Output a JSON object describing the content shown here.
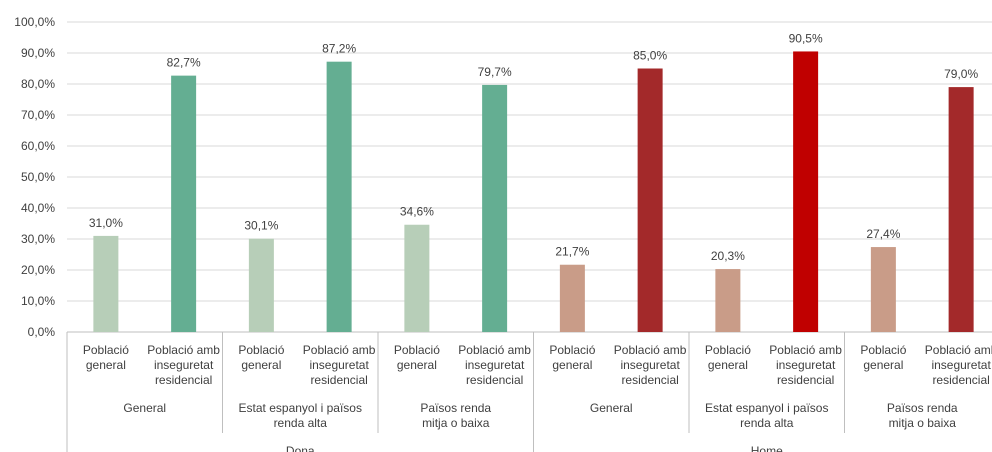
{
  "chart_data": {
    "type": "bar",
    "title": "",
    "xlabel": "",
    "ylabel": "",
    "ylim": [
      0,
      100
    ],
    "y_ticks": [
      "0,0%",
      "10,0%",
      "20,0%",
      "30,0%",
      "40,0%",
      "50,0%",
      "60,0%",
      "70,0%",
      "80,0%",
      "90,0%",
      "100,0%"
    ],
    "grid": true,
    "legend": "none",
    "gender_groups": [
      {
        "label": "Dona",
        "subgroups": [
          0,
          1,
          2
        ]
      },
      {
        "label": "Home",
        "subgroups": [
          3,
          4,
          5
        ]
      }
    ],
    "subgroups": [
      {
        "label": [
          "General"
        ]
      },
      {
        "label": [
          "Estat espanyol i països",
          "renda alta"
        ]
      },
      {
        "label": [
          "Països renda",
          "mitja o baixa"
        ]
      },
      {
        "label": [
          "General"
        ]
      },
      {
        "label": [
          "Estat espanyol i països",
          "renda alta"
        ]
      },
      {
        "label": [
          "Països renda",
          "mitja o baixa"
        ]
      }
    ],
    "category_labels": {
      "general": [
        "Població",
        "general"
      ],
      "insecure": [
        "Població amb",
        "inseguretat",
        "residencial"
      ]
    },
    "bars": [
      {
        "subgroup": 0,
        "category": "general",
        "value": 31.0,
        "label": "31,0%",
        "color": "#b7ceb8"
      },
      {
        "subgroup": 0,
        "category": "insecure",
        "value": 82.7,
        "label": "82,7%",
        "color": "#64ae92"
      },
      {
        "subgroup": 1,
        "category": "general",
        "value": 30.1,
        "label": "30,1%",
        "color": "#b7ceb8"
      },
      {
        "subgroup": 1,
        "category": "insecure",
        "value": 87.2,
        "label": "87,2%",
        "color": "#64ae92"
      },
      {
        "subgroup": 2,
        "category": "general",
        "value": 34.6,
        "label": "34,6%",
        "color": "#b7ceb8"
      },
      {
        "subgroup": 2,
        "category": "insecure",
        "value": 79.7,
        "label": "79,7%",
        "color": "#64ae92"
      },
      {
        "subgroup": 3,
        "category": "general",
        "value": 21.7,
        "label": "21,7%",
        "color": "#c99c88"
      },
      {
        "subgroup": 3,
        "category": "insecure",
        "value": 85.0,
        "label": "85,0%",
        "color": "#a3292a"
      },
      {
        "subgroup": 4,
        "category": "general",
        "value": 20.3,
        "label": "20,3%",
        "color": "#c99c88"
      },
      {
        "subgroup": 4,
        "category": "insecure",
        "value": 90.5,
        "label": "90,5%",
        "color": "#c00000"
      },
      {
        "subgroup": 5,
        "category": "general",
        "value": 27.4,
        "label": "27,4%",
        "color": "#c99c88"
      },
      {
        "subgroup": 5,
        "category": "insecure",
        "value": 79.0,
        "label": "79,0%",
        "color": "#a3292a"
      }
    ]
  }
}
